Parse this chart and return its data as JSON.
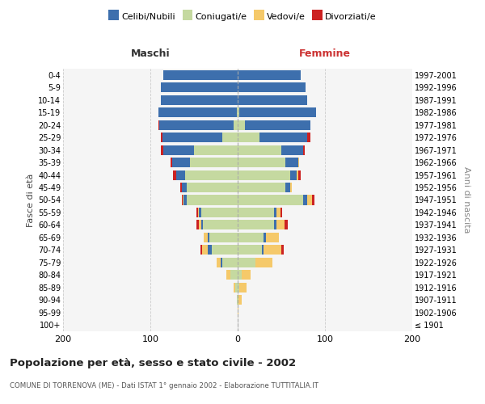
{
  "age_groups": [
    "100+",
    "95-99",
    "90-94",
    "85-89",
    "80-84",
    "75-79",
    "70-74",
    "65-69",
    "60-64",
    "55-59",
    "50-54",
    "45-49",
    "40-44",
    "35-39",
    "30-34",
    "25-29",
    "20-24",
    "15-19",
    "10-14",
    "5-9",
    "0-4"
  ],
  "birth_years": [
    "≤ 1901",
    "1902-1906",
    "1907-1911",
    "1912-1916",
    "1917-1921",
    "1922-1926",
    "1927-1931",
    "1932-1936",
    "1937-1941",
    "1942-1946",
    "1947-1951",
    "1952-1956",
    "1957-1961",
    "1962-1966",
    "1967-1971",
    "1972-1976",
    "1977-1981",
    "1982-1986",
    "1987-1991",
    "1992-1996",
    "1997-2001"
  ],
  "males": {
    "celibi": [
      0,
      0,
      0,
      0,
      0,
      1,
      4,
      2,
      2,
      2,
      4,
      6,
      10,
      20,
      35,
      68,
      85,
      90,
      88,
      88,
      85
    ],
    "coniugati": [
      0,
      0,
      1,
      3,
      8,
      18,
      30,
      32,
      40,
      42,
      58,
      58,
      60,
      55,
      50,
      18,
      5,
      1,
      0,
      0,
      0
    ],
    "vedovi": [
      0,
      0,
      0,
      2,
      5,
      5,
      7,
      5,
      2,
      1,
      1,
      0,
      0,
      0,
      0,
      0,
      0,
      0,
      0,
      0,
      0
    ],
    "divorziati": [
      0,
      0,
      0,
      0,
      0,
      0,
      2,
      0,
      3,
      2,
      1,
      2,
      4,
      2,
      3,
      2,
      1,
      0,
      0,
      0,
      0
    ]
  },
  "females": {
    "nubili": [
      0,
      0,
      0,
      0,
      0,
      0,
      2,
      2,
      2,
      2,
      5,
      5,
      8,
      14,
      25,
      55,
      75,
      88,
      80,
      78,
      72
    ],
    "coniugate": [
      0,
      0,
      1,
      2,
      5,
      20,
      28,
      30,
      42,
      42,
      75,
      55,
      60,
      55,
      50,
      25,
      8,
      2,
      0,
      0,
      0
    ],
    "vedove": [
      0,
      1,
      4,
      8,
      10,
      20,
      20,
      15,
      10,
      5,
      5,
      2,
      1,
      1,
      0,
      0,
      0,
      0,
      0,
      0,
      0
    ],
    "divorziate": [
      0,
      0,
      0,
      0,
      0,
      0,
      3,
      0,
      3,
      2,
      3,
      0,
      3,
      0,
      2,
      3,
      0,
      0,
      0,
      0,
      0
    ]
  },
  "colors": {
    "celibi_nubili": "#3d6fad",
    "coniugati": "#c5d9a0",
    "vedovi": "#f5c96a",
    "divorziati": "#cc2222"
  },
  "title": "Popolazione per età, sesso e stato civile - 2002",
  "subtitle": "COMUNE DI TORRENOVA (ME) - Dati ISTAT 1° gennaio 2002 - Elaborazione TUTTITALIA.IT",
  "xlabel_left": "Maschi",
  "xlabel_right": "Femmine",
  "ylabel_left": "Fasce di età",
  "ylabel_right": "Anni di nascita",
  "xlim": 200,
  "bg_color": "#f5f5f5",
  "plot_bg": "#f5f5f5",
  "grid_color": "#cccccc",
  "legend_labels": [
    "Celibi/Nubili",
    "Coniugati/e",
    "Vedovi/e",
    "Divorziati/e"
  ]
}
